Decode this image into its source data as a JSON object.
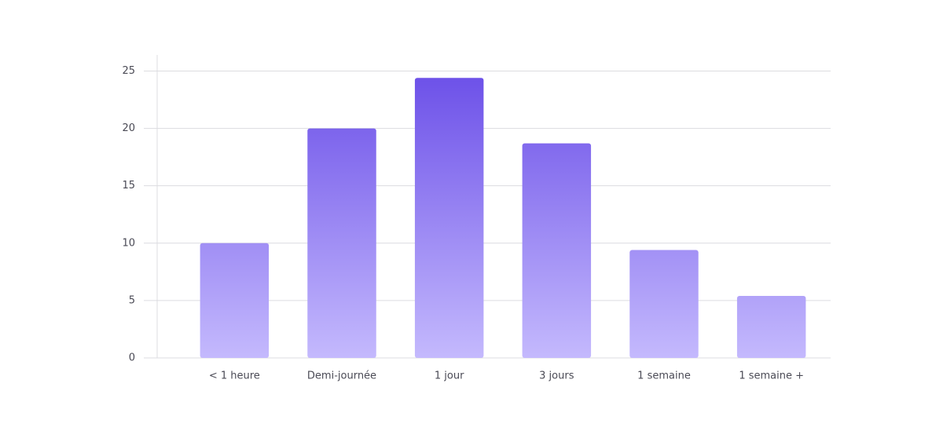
{
  "chart_data": {
    "type": "bar",
    "categories": [
      "< 1 heure",
      "Demi-journée",
      "1 jour",
      "3 jours",
      "1 semaine",
      "1 semaine +"
    ],
    "values": [
      10,
      20,
      24.4,
      18.7,
      9.4,
      5.4
    ],
    "gradient": [
      "#6b4fe8",
      "#c4b9fd"
    ],
    "ylim": [
      0,
      26.4
    ],
    "yticks": [
      0,
      5,
      10,
      15,
      20,
      25
    ],
    "grid": true
  }
}
